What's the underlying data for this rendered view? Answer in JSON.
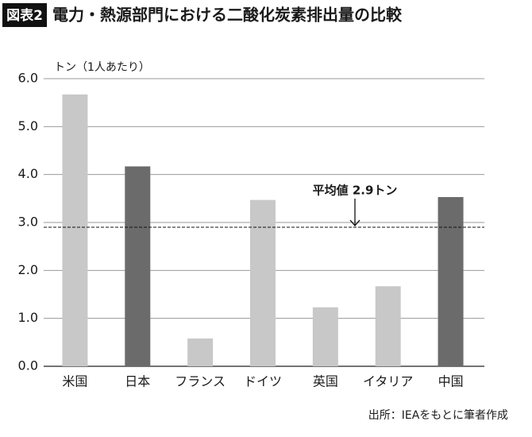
{
  "chart_data": {
    "type": "bar",
    "figure_label": "図表2",
    "title": "電力・熱源部門における二酸化炭素排出量の比較",
    "y_label": "トン（1人あたり）",
    "categories": [
      "米国",
      "日本",
      "フランス",
      "ドイツ",
      "英国",
      "イタリア",
      "中国"
    ],
    "values": [
      5.67,
      4.17,
      0.58,
      3.47,
      1.23,
      1.67,
      3.53
    ],
    "colors": [
      "#c8c8c9",
      "#6b6b6b",
      "#c8c8c9",
      "#c8c8c9",
      "#c8c8c9",
      "#c8c8c9",
      "#6b6b6b"
    ],
    "ylim": [
      0,
      6
    ],
    "yticks": [
      {
        "value": 0,
        "label": "0.0"
      },
      {
        "value": 1,
        "label": "1.0"
      },
      {
        "value": 2,
        "label": "2.0"
      },
      {
        "value": 3,
        "label": "3.0"
      },
      {
        "value": 4,
        "label": "4.0"
      },
      {
        "value": 5,
        "label": "5.0"
      },
      {
        "value": 6,
        "label": "6.0"
      }
    ],
    "grid": true,
    "average": 2.9,
    "average_label": "平均値 2.9トン",
    "source": "出所：IEAをもとに筆者作成"
  }
}
